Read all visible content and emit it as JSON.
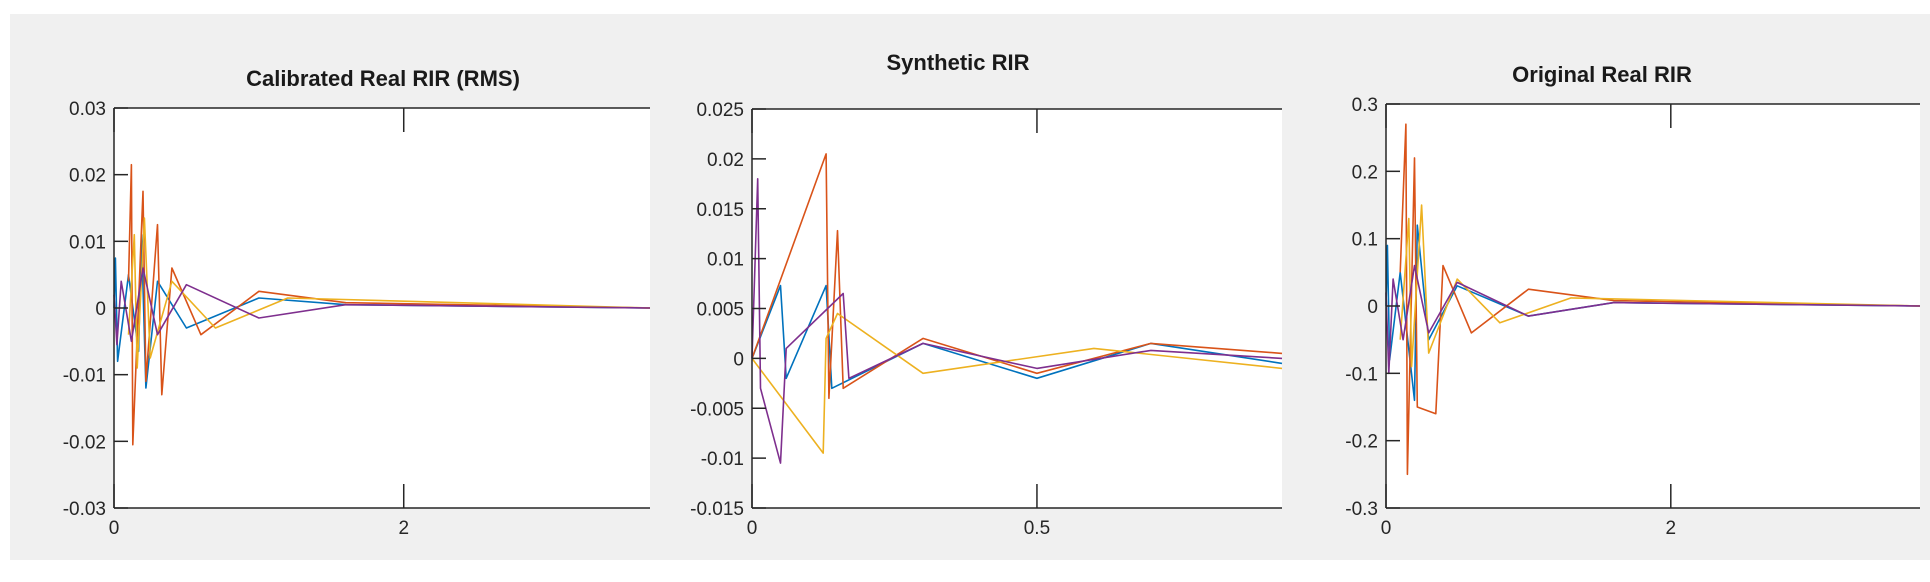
{
  "figure": {
    "background": "#f0f0f0",
    "axes_color": "#262626",
    "series_colors": [
      "#0072bd",
      "#d95319",
      "#edb120",
      "#7e2f8e"
    ]
  },
  "chart_data": [
    {
      "type": "line",
      "title": "Calibrated Real RIR (RMS)",
      "xlabel": "",
      "ylabel": "",
      "xlim": [
        0,
        3.7
      ],
      "ylim": [
        -0.03,
        0.03
      ],
      "xticks": [
        0,
        2
      ],
      "xtick_labels": [
        "0",
        "2"
      ],
      "yticks": [
        -0.03,
        -0.02,
        -0.01,
        0,
        0.01,
        0.02,
        0.03
      ],
      "ytick_labels": [
        "-0.03",
        "-0.02",
        "-0.01",
        "0",
        "0.01",
        "0.02",
        "0.03"
      ],
      "series": [
        {
          "color": "#0072bd",
          "values": [
            [
              0,
              0
            ],
            [
              0.01,
              0.0075
            ],
            [
              0.025,
              -0.008
            ],
            [
              0.1,
              0.005
            ],
            [
              0.17,
              -0.0065
            ],
            [
              0.19,
              0.011
            ],
            [
              0.22,
              -0.012
            ],
            [
              0.3,
              0.004
            ],
            [
              0.5,
              -0.003
            ],
            [
              1.0,
              0.0015
            ],
            [
              1.6,
              0.0005
            ],
            [
              3.7,
              0.0
            ]
          ]
        },
        {
          "color": "#d95319",
          "values": [
            [
              0.1,
              0.004
            ],
            [
              0.12,
              0.0215
            ],
            [
              0.13,
              -0.0205
            ],
            [
              0.2,
              0.0175
            ],
            [
              0.22,
              -0.011
            ],
            [
              0.3,
              0.0125
            ],
            [
              0.33,
              -0.013
            ],
            [
              0.4,
              0.006
            ],
            [
              0.6,
              -0.004
            ],
            [
              1.0,
              0.0025
            ],
            [
              1.6,
              0.0008
            ],
            [
              3.7,
              0.0
            ]
          ]
        },
        {
          "color": "#edb120",
          "values": [
            [
              0.1,
              -0.004
            ],
            [
              0.14,
              0.011
            ],
            [
              0.16,
              -0.009
            ],
            [
              0.21,
              0.0135
            ],
            [
              0.25,
              -0.0075
            ],
            [
              0.4,
              0.004
            ],
            [
              0.7,
              -0.003
            ],
            [
              1.2,
              0.0015
            ],
            [
              3.7,
              0.0
            ]
          ]
        },
        {
          "color": "#7e2f8e",
          "values": [
            [
              0.0,
              0.002
            ],
            [
              0.02,
              -0.0055
            ],
            [
              0.05,
              0.004
            ],
            [
              0.12,
              -0.005
            ],
            [
              0.2,
              0.006
            ],
            [
              0.3,
              -0.004
            ],
            [
              0.5,
              0.0035
            ],
            [
              1.0,
              -0.0015
            ],
            [
              1.6,
              0.0005
            ],
            [
              3.7,
              0.0
            ]
          ]
        }
      ]
    },
    {
      "type": "line",
      "title": "Synthetic RIR",
      "xlabel": "",
      "ylabel": "",
      "xlim": [
        0,
        0.93
      ],
      "ylim": [
        -0.015,
        0.025
      ],
      "xticks": [
        0,
        0.5
      ],
      "xtick_labels": [
        "0",
        "0.5"
      ],
      "yticks": [
        -0.015,
        -0.01,
        -0.005,
        0,
        0.005,
        0.01,
        0.015,
        0.02,
        0.025
      ],
      "ytick_labels": [
        "-0.015",
        "-0.01",
        "-0.005",
        "0",
        "0.005",
        "0.01",
        "0.015",
        "0.02",
        "0.025"
      ],
      "series": [
        {
          "color": "#0072bd",
          "values": [
            [
              0.0,
              0.0
            ],
            [
              0.05,
              0.0073
            ],
            [
              0.06,
              -0.002
            ],
            [
              0.13,
              0.0073
            ],
            [
              0.14,
              -0.003
            ],
            [
              0.3,
              0.0015
            ],
            [
              0.5,
              -0.002
            ],
            [
              0.7,
              0.0015
            ],
            [
              0.93,
              -0.0005
            ]
          ]
        },
        {
          "color": "#d95319",
          "values": [
            [
              0.0,
              0.0
            ],
            [
              0.13,
              0.0205
            ],
            [
              0.135,
              -0.004
            ],
            [
              0.15,
              0.0128
            ],
            [
              0.16,
              -0.003
            ],
            [
              0.3,
              0.002
            ],
            [
              0.5,
              -0.0015
            ],
            [
              0.7,
              0.0015
            ],
            [
              0.93,
              0.0005
            ]
          ]
        },
        {
          "color": "#edb120",
          "values": [
            [
              0.0,
              0.0
            ],
            [
              0.125,
              -0.0095
            ],
            [
              0.13,
              0.002
            ],
            [
              0.15,
              0.0045
            ],
            [
              0.3,
              -0.0015
            ],
            [
              0.6,
              0.001
            ],
            [
              0.93,
              -0.001
            ]
          ]
        },
        {
          "color": "#7e2f8e",
          "values": [
            [
              0.0,
              0.0
            ],
            [
              0.01,
              0.018
            ],
            [
              0.015,
              -0.003
            ],
            [
              0.05,
              -0.0105
            ],
            [
              0.06,
              0.001
            ],
            [
              0.16,
              0.0065
            ],
            [
              0.17,
              -0.002
            ],
            [
              0.3,
              0.0015
            ],
            [
              0.5,
              -0.001
            ],
            [
              0.7,
              0.0008
            ],
            [
              0.93,
              0.0
            ]
          ]
        }
      ]
    },
    {
      "type": "line",
      "title": "Original Real RIR",
      "xlabel": "",
      "ylabel": "",
      "xlim": [
        0,
        3.75
      ],
      "ylim": [
        -0.3,
        0.3
      ],
      "xticks": [
        0,
        2
      ],
      "xtick_labels": [
        "0",
        "2"
      ],
      "yticks": [
        -0.3,
        -0.2,
        -0.1,
        0,
        0.1,
        0.2,
        0.3
      ],
      "ytick_labels": [
        "-0.3",
        "-0.2",
        "-0.1",
        "0",
        "0.1",
        "0.2",
        "0.3"
      ],
      "series": [
        {
          "color": "#0072bd",
          "values": [
            [
              0,
              0
            ],
            [
              0.01,
              0.09
            ],
            [
              0.025,
              -0.08
            ],
            [
              0.1,
              0.05
            ],
            [
              0.2,
              -0.14
            ],
            [
              0.22,
              0.12
            ],
            [
              0.3,
              -0.05
            ],
            [
              0.5,
              0.03
            ],
            [
              1.0,
              -0.015
            ],
            [
              1.6,
              0.005
            ],
            [
              3.75,
              0.0
            ]
          ]
        },
        {
          "color": "#d95319",
          "values": [
            [
              0.1,
              0.05
            ],
            [
              0.14,
              0.27
            ],
            [
              0.15,
              -0.25
            ],
            [
              0.2,
              0.22
            ],
            [
              0.22,
              -0.15
            ],
            [
              0.35,
              -0.16
            ],
            [
              0.4,
              0.06
            ],
            [
              0.6,
              -0.04
            ],
            [
              1.0,
              0.025
            ],
            [
              1.6,
              0.008
            ],
            [
              3.75,
              0.0
            ]
          ]
        },
        {
          "color": "#edb120",
          "values": [
            [
              0.1,
              -0.05
            ],
            [
              0.16,
              0.13
            ],
            [
              0.18,
              -0.09
            ],
            [
              0.25,
              0.15
            ],
            [
              0.3,
              -0.07
            ],
            [
              0.5,
              0.04
            ],
            [
              0.8,
              -0.025
            ],
            [
              1.3,
              0.012
            ],
            [
              3.75,
              0.0
            ]
          ]
        },
        {
          "color": "#7e2f8e",
          "values": [
            [
              0.0,
              0.02
            ],
            [
              0.02,
              -0.1
            ],
            [
              0.05,
              0.04
            ],
            [
              0.12,
              -0.05
            ],
            [
              0.2,
              0.06
            ],
            [
              0.3,
              -0.04
            ],
            [
              0.5,
              0.035
            ],
            [
              1.0,
              -0.015
            ],
            [
              1.6,
              0.005
            ],
            [
              3.75,
              0.0
            ]
          ]
        }
      ]
    }
  ]
}
